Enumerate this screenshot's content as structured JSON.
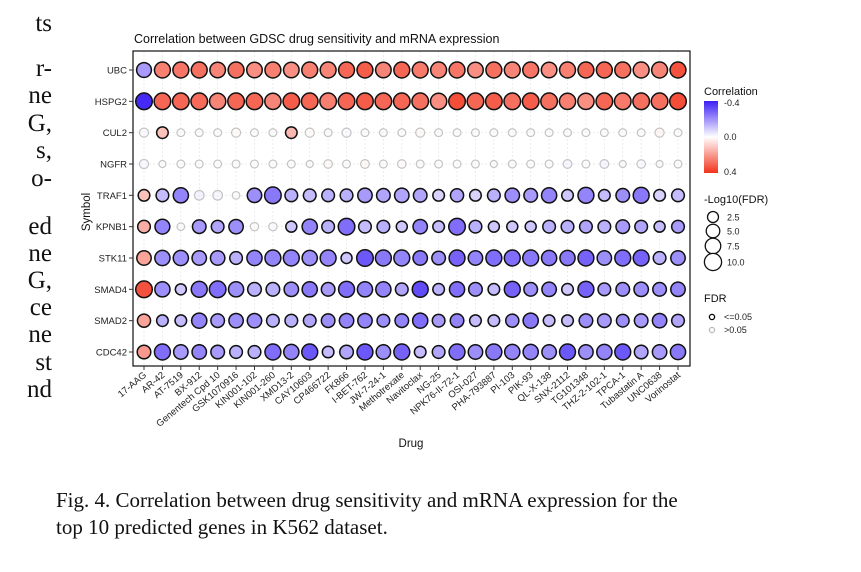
{
  "left_text_fragments": [
    "ts",
    "r-",
    "ne",
    "G,",
    "s,",
    "o-",
    "ed",
    "ne",
    "G,",
    "ce",
    "ne",
    "st",
    "nd"
  ],
  "caption": {
    "line1": "Fig. 4.  Correlation between drug sensitivity and mRNA expression for the",
    "line2": "top 10 predicted genes in K562 dataset."
  },
  "chart_data": {
    "type": "scatter",
    "subtype": "dot-plot",
    "title": "Correlation between GDSC drug sensitivity and mRNA expression",
    "xlabel": "Drug",
    "ylabel": "Symbol",
    "grid": true,
    "x": [
      "17-AAG",
      "AR-42",
      "AT-7519",
      "BX-912",
      "Genentech Cpd 10",
      "GSK1070916",
      "KIN001-102",
      "KIN001-260",
      "XMD13-2",
      "CAY10603",
      "CP466722",
      "FK866",
      "I-BET-762",
      "JW-7-24-1",
      "Methotrexate",
      "Navitoclax",
      "NG-25",
      "NPK76-II-72-1",
      "OSI-027",
      "PHA-793887",
      "PI-103",
      "PIK-93",
      "QL-X-138",
      "SNX-2112",
      "TG101348",
      "THZ-2-102-1",
      "TPCA-1",
      "Tubastatin A",
      "UNC0638",
      "Vorinostat"
    ],
    "y": [
      "UBC",
      "HSPG2",
      "CUL2",
      "NGFR",
      "TRAF1",
      "KPNB1",
      "STK11",
      "SMAD4",
      "SMAD2",
      "CDC42"
    ],
    "color_scale": {
      "title": "Correlation",
      "min": -0.4,
      "max": 0.4,
      "ticks": [
        "-0.4",
        "0.0",
        "0.4"
      ],
      "low_color": "#3b1ff5",
      "mid_color": "#ffffff",
      "high_color": "#f2331c",
      "legend_position": "right"
    },
    "size_scale": {
      "title": "-Log10(FDR)",
      "breaks": [
        2.5,
        5.0,
        7.5,
        10.0
      ],
      "labels": [
        "2.5",
        "5.0",
        "7.5",
        "10.0"
      ],
      "legend_position": "right"
    },
    "fdr_legend": {
      "title": "FDR",
      "labels": [
        "<=0.05",
        ">0.05"
      ],
      "colors": [
        "#000000",
        "#bbbbbb"
      ],
      "legend_position": "right"
    },
    "correlation": [
      [
        -0.18,
        0.25,
        0.27,
        0.28,
        0.24,
        0.28,
        0.22,
        0.25,
        0.22,
        0.25,
        0.24,
        0.3,
        0.32,
        0.24,
        0.3,
        0.26,
        0.24,
        0.27,
        0.22,
        0.28,
        0.24,
        0.27,
        0.22,
        0.25,
        0.3,
        0.3,
        0.28,
        0.22,
        0.24,
        0.34
      ],
      [
        -0.38,
        0.3,
        0.3,
        0.29,
        0.24,
        0.3,
        0.3,
        0.24,
        0.32,
        0.3,
        0.25,
        0.3,
        0.32,
        0.3,
        0.3,
        0.28,
        0.22,
        0.35,
        0.3,
        0.32,
        0.28,
        0.32,
        0.28,
        0.25,
        0.22,
        0.3,
        0.26,
        0.28,
        0.28,
        0.35
      ],
      [
        -0.03,
        0.12,
        -0.02,
        -0.02,
        -0.02,
        0.03,
        -0.02,
        -0.02,
        0.14,
        0.03,
        -0.02,
        -0.04,
        -0.02,
        -0.02,
        -0.02,
        0.04,
        -0.02,
        -0.02,
        -0.02,
        -0.02,
        -0.02,
        -0.02,
        -0.02,
        -0.02,
        -0.02,
        -0.02,
        -0.02,
        -0.02,
        0.06,
        -0.02
      ],
      [
        -0.04,
        -0.02,
        -0.02,
        -0.02,
        -0.02,
        -0.02,
        -0.02,
        -0.02,
        -0.02,
        -0.02,
        0.04,
        -0.02,
        0.05,
        -0.02,
        0.03,
        -0.02,
        -0.02,
        -0.02,
        -0.02,
        -0.02,
        -0.02,
        -0.02,
        -0.02,
        -0.06,
        -0.02,
        -0.06,
        -0.02,
        -0.04,
        -0.02,
        -0.02
      ],
      [
        0.12,
        -0.12,
        -0.22,
        -0.08,
        -0.06,
        -0.02,
        -0.2,
        -0.24,
        -0.14,
        -0.12,
        -0.14,
        -0.14,
        -0.18,
        -0.16,
        -0.16,
        -0.16,
        -0.08,
        -0.16,
        -0.08,
        -0.14,
        -0.2,
        -0.18,
        -0.22,
        -0.1,
        -0.22,
        -0.12,
        -0.2,
        -0.24,
        -0.08,
        -0.12
      ],
      [
        0.16,
        -0.22,
        -0.02,
        -0.18,
        -0.16,
        -0.2,
        0.03,
        -0.02,
        -0.1,
        -0.22,
        -0.14,
        -0.26,
        -0.12,
        -0.14,
        -0.1,
        -0.22,
        -0.12,
        -0.26,
        -0.14,
        -0.1,
        -0.1,
        -0.1,
        -0.14,
        -0.14,
        -0.16,
        -0.14,
        -0.18,
        -0.16,
        -0.12,
        -0.18
      ],
      [
        0.18,
        -0.2,
        -0.2,
        -0.18,
        -0.18,
        -0.14,
        -0.22,
        -0.22,
        -0.22,
        -0.2,
        -0.22,
        -0.1,
        -0.3,
        -0.24,
        -0.22,
        -0.24,
        -0.2,
        -0.28,
        -0.22,
        -0.26,
        -0.26,
        -0.24,
        -0.24,
        -0.24,
        -0.28,
        -0.2,
        -0.26,
        -0.28,
        -0.14,
        -0.2
      ],
      [
        0.34,
        -0.2,
        -0.1,
        -0.24,
        -0.26,
        -0.2,
        -0.14,
        -0.14,
        -0.2,
        -0.24,
        -0.18,
        -0.26,
        -0.22,
        -0.22,
        -0.16,
        -0.32,
        -0.14,
        -0.26,
        -0.2,
        -0.12,
        -0.28,
        -0.2,
        -0.22,
        -0.1,
        -0.28,
        -0.18,
        -0.2,
        -0.2,
        -0.2,
        -0.22
      ],
      [
        0.18,
        -0.14,
        -0.12,
        -0.22,
        -0.18,
        -0.2,
        -0.2,
        -0.14,
        -0.14,
        -0.16,
        -0.2,
        -0.22,
        -0.22,
        -0.2,
        -0.22,
        -0.26,
        -0.18,
        -0.22,
        -0.12,
        -0.12,
        -0.2,
        -0.24,
        -0.12,
        -0.12,
        -0.2,
        -0.18,
        -0.2,
        -0.18,
        -0.22,
        -0.16
      ],
      [
        0.2,
        -0.26,
        -0.18,
        -0.22,
        -0.18,
        -0.14,
        -0.14,
        -0.26,
        -0.22,
        -0.3,
        -0.12,
        -0.16,
        -0.3,
        -0.2,
        -0.28,
        -0.12,
        -0.16,
        -0.26,
        -0.2,
        -0.24,
        -0.22,
        -0.22,
        -0.2,
        -0.3,
        -0.2,
        -0.22,
        -0.3,
        -0.16,
        -0.18,
        -0.24
      ]
    ],
    "neg_log10_fdr": [
      [
        6.5,
        8,
        8,
        8,
        7.5,
        8,
        7.5,
        8,
        7.5,
        8,
        8,
        8,
        8,
        7.5,
        8,
        8,
        8,
        8,
        7.5,
        8,
        8,
        8,
        7.5,
        8,
        8,
        8,
        8,
        8,
        8,
        8
      ],
      [
        9,
        9,
        9,
        9,
        8.5,
        9,
        9,
        8.5,
        9,
        9,
        9,
        9,
        9,
        9,
        9,
        9,
        8.5,
        9,
        9,
        9,
        9,
        9,
        9,
        8.5,
        8.5,
        9,
        9,
        9,
        9,
        9
      ],
      [
        1.2,
        3,
        0.6,
        0.6,
        0.6,
        1.2,
        0.6,
        0.6,
        3,
        1.2,
        0.6,
        1.2,
        0.6,
        0.6,
        0.6,
        1.2,
        0.6,
        0.6,
        0.6,
        0.6,
        0.6,
        0.6,
        0.6,
        0.6,
        0.6,
        0.6,
        0.6,
        0.6,
        1.2,
        0.6
      ],
      [
        1.2,
        0.3,
        0.6,
        0.6,
        0.6,
        0.6,
        0.6,
        0.6,
        0.6,
        0.3,
        0.9,
        0.6,
        1.0,
        0.6,
        0.9,
        0.6,
        0.6,
        0.6,
        0.6,
        0.3,
        0.6,
        0.6,
        0.6,
        1.0,
        0.6,
        1.0,
        0.3,
        0.9,
        0.3,
        0.6
      ],
      [
        3,
        4,
        7,
        1.5,
        1.5,
        0.5,
        6,
        9,
        4,
        4,
        4,
        4,
        6,
        5,
        6,
        5,
        3,
        4.5,
        3,
        4,
        6,
        5,
        7,
        3,
        8,
        3,
        5,
        8,
        3,
        4
      ],
      [
        4,
        6.5,
        0.5,
        5,
        4,
        6,
        0.8,
        0.8,
        2.5,
        7,
        4,
        9,
        4,
        4,
        2.5,
        6,
        3,
        9,
        4,
        2.5,
        2.5,
        2.5,
        4,
        4,
        4,
        4,
        5,
        4,
        2.5,
        4
      ],
      [
        6,
        7,
        7,
        6,
        6,
        4,
        7,
        8,
        8,
        7,
        8,
        2.5,
        9,
        8,
        8,
        6,
        5,
        8,
        6,
        8,
        8,
        8,
        7,
        7,
        8,
        6,
        8,
        8,
        4,
        6
      ],
      [
        9,
        7,
        2.5,
        8,
        9,
        7,
        5,
        5,
        6,
        7,
        5,
        8,
        7,
        7,
        4,
        8,
        3,
        7,
        5,
        3,
        8,
        5,
        6,
        3,
        8,
        4,
        5,
        6,
        5,
        6
      ],
      [
        4.5,
        3,
        3,
        7,
        5,
        6,
        6,
        4,
        4,
        4,
        5,
        6,
        6,
        4,
        5,
        7,
        4,
        5,
        3,
        3,
        4.5,
        7,
        3,
        3,
        5,
        5,
        4,
        5,
        6,
        4
      ],
      [
        5,
        8,
        6,
        6,
        5,
        4,
        4,
        8,
        7,
        8,
        3,
        5,
        8,
        6,
        8,
        3,
        4,
        8,
        6,
        8,
        7,
        7,
        6,
        8,
        6,
        7,
        8,
        5,
        6,
        7
      ]
    ],
    "significant": [
      [
        1,
        1,
        1,
        1,
        1,
        1,
        1,
        1,
        1,
        1,
        1,
        1,
        1,
        1,
        1,
        1,
        1,
        1,
        1,
        1,
        1,
        1,
        1,
        1,
        1,
        1,
        1,
        1,
        1,
        1
      ],
      [
        1,
        1,
        1,
        1,
        1,
        1,
        1,
        1,
        1,
        1,
        1,
        1,
        1,
        1,
        1,
        1,
        1,
        1,
        1,
        1,
        1,
        1,
        1,
        1,
        1,
        1,
        1,
        1,
        1,
        1
      ],
      [
        0,
        1,
        0,
        0,
        0,
        0,
        0,
        0,
        1,
        0,
        0,
        0,
        0,
        0,
        0,
        0,
        0,
        0,
        0,
        0,
        0,
        0,
        0,
        0,
        0,
        0,
        0,
        0,
        0,
        0
      ],
      [
        0,
        0,
        0,
        0,
        0,
        0,
        0,
        0,
        0,
        0,
        0,
        0,
        0,
        0,
        0,
        0,
        0,
        0,
        0,
        0,
        0,
        0,
        0,
        0,
        0,
        0,
        0,
        0,
        0,
        0
      ],
      [
        1,
        1,
        1,
        0,
        0,
        0,
        1,
        1,
        1,
        1,
        1,
        1,
        1,
        1,
        1,
        1,
        1,
        1,
        1,
        1,
        1,
        1,
        1,
        1,
        1,
        1,
        1,
        1,
        1,
        1
      ],
      [
        1,
        1,
        0,
        1,
        1,
        1,
        0,
        0,
        1,
        1,
        1,
        1,
        1,
        1,
        1,
        1,
        1,
        1,
        1,
        1,
        1,
        1,
        1,
        1,
        1,
        1,
        1,
        1,
        1,
        1
      ],
      [
        1,
        1,
        1,
        1,
        1,
        1,
        1,
        1,
        1,
        1,
        1,
        1,
        1,
        1,
        1,
        1,
        1,
        1,
        1,
        1,
        1,
        1,
        1,
        1,
        1,
        1,
        1,
        1,
        1,
        1
      ],
      [
        1,
        1,
        1,
        1,
        1,
        1,
        1,
        1,
        1,
        1,
        1,
        1,
        1,
        1,
        1,
        1,
        1,
        1,
        1,
        1,
        1,
        1,
        1,
        1,
        1,
        1,
        1,
        1,
        1,
        1
      ],
      [
        1,
        1,
        1,
        1,
        1,
        1,
        1,
        1,
        1,
        1,
        1,
        1,
        1,
        1,
        1,
        1,
        1,
        1,
        1,
        1,
        1,
        1,
        1,
        1,
        1,
        1,
        1,
        1,
        1,
        1
      ],
      [
        1,
        1,
        1,
        1,
        1,
        1,
        1,
        1,
        1,
        1,
        1,
        1,
        1,
        1,
        1,
        1,
        1,
        1,
        1,
        1,
        1,
        1,
        1,
        1,
        1,
        1,
        1,
        1,
        1,
        1
      ]
    ]
  }
}
